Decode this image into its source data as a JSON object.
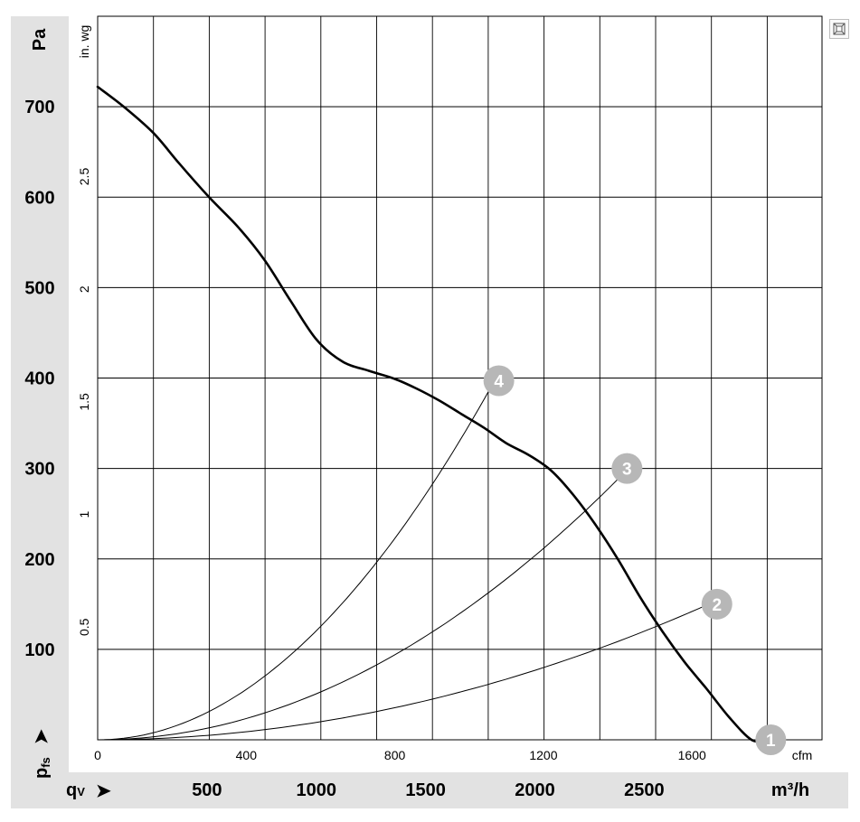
{
  "chart_data": {
    "type": "line",
    "title": "",
    "left_axis": {
      "unit": "Pa",
      "ticks": [
        100,
        200,
        300,
        400,
        500,
        600,
        700
      ],
      "ylim": [
        0,
        800
      ]
    },
    "inner_axis": {
      "unit": "in. wg",
      "ticks": [
        "0.5",
        "1",
        "1.5",
        "2",
        "2.5"
      ]
    },
    "bottom_axis": {
      "unit": "m³/h",
      "ticks": [
        500,
        1000,
        1500,
        2000,
        2500
      ]
    },
    "inner_x_axis": {
      "unit": "cfm",
      "ticks": [
        "0",
        "400",
        "800",
        "1200",
        "1600"
      ],
      "xlim": [
        0,
        1950
      ]
    },
    "y_label_symbol": "p",
    "y_label_sub": "fs",
    "x_label_symbol": "q",
    "x_label_sub": "V",
    "arrow_glyph": "➤",
    "grid": true,
    "fan_curve": {
      "x_cfm": [
        0,
        70,
        150,
        220,
        300,
        380,
        450,
        520,
        590,
        660,
        730,
        800,
        860,
        920,
        980,
        1040,
        1100,
        1160,
        1220,
        1280,
        1340,
        1400,
        1460,
        1520,
        1580,
        1640,
        1700,
        1760,
        1800,
        1825
      ],
      "pressure_pa": [
        722,
        700,
        671,
        637,
        600,
        566,
        530,
        485,
        442,
        418,
        408,
        399,
        388,
        375,
        360,
        345,
        328,
        315,
        298,
        271,
        238,
        200,
        158,
        120,
        86,
        56,
        25,
        0,
        0,
        0
      ]
    },
    "operating_points": [
      {
        "label": "1",
        "x_cfm": 1812,
        "pressure_pa": 0
      },
      {
        "label": "2",
        "x_cfm": 1667,
        "pressure_pa": 150
      },
      {
        "label": "3",
        "x_cfm": 1425,
        "pressure_pa": 300
      },
      {
        "label": "4",
        "x_cfm": 1080,
        "pressure_pa": 397
      }
    ],
    "system_curves": [
      {
        "label": "2",
        "end_x_cfm": 1645,
        "end_pressure_pa": 150
      },
      {
        "label": "3",
        "end_x_cfm": 1405,
        "end_pressure_pa": 290
      },
      {
        "label": "4",
        "end_x_cfm": 1060,
        "end_pressure_pa": 391
      }
    ]
  },
  "toolbar": {
    "fit_icon": "fit-to-page-icon"
  }
}
